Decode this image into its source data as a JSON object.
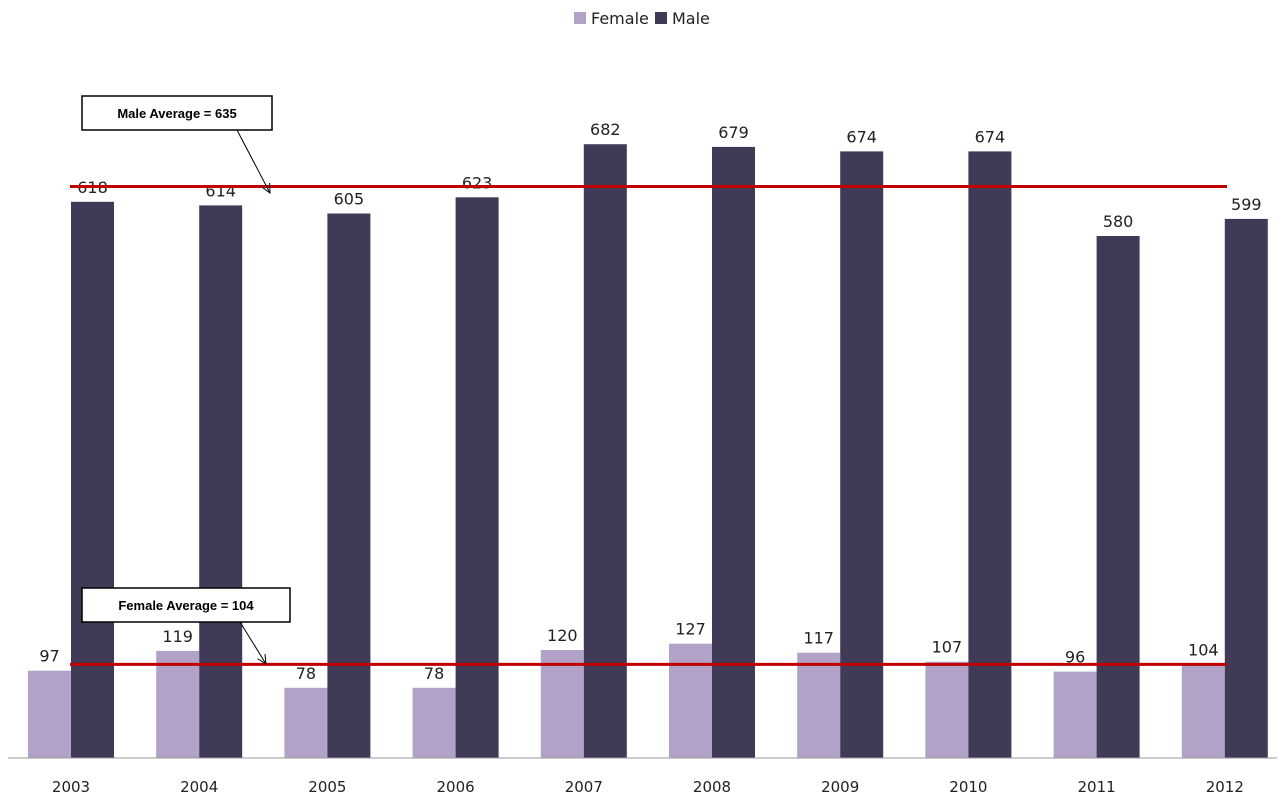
{
  "chart_data": {
    "type": "bar",
    "categories": [
      "2003",
      "2004",
      "2005",
      "2006",
      "2007",
      "2008",
      "2009",
      "2010",
      "2011",
      "2012"
    ],
    "series": [
      {
        "name": "Female",
        "values": [
          97,
          119,
          78,
          78,
          120,
          127,
          117,
          107,
          96,
          104
        ],
        "color": "#b3a2c7"
      },
      {
        "name": "Male",
        "values": [
          618,
          614,
          605,
          623,
          682,
          679,
          674,
          674,
          580,
          599
        ],
        "color": "#403a57"
      }
    ],
    "title": "",
    "xlabel": "",
    "ylabel": "",
    "ylim": [
      0,
      750
    ],
    "grid": false,
    "legend": {
      "position": "top-center"
    },
    "reference_lines": [
      {
        "series": "Male",
        "value": 635,
        "label": "Male Average = 635",
        "color": "#c00000"
      },
      {
        "series": "Female",
        "value": 104,
        "label": "Female Average = 104",
        "color": "#c00000"
      }
    ]
  }
}
